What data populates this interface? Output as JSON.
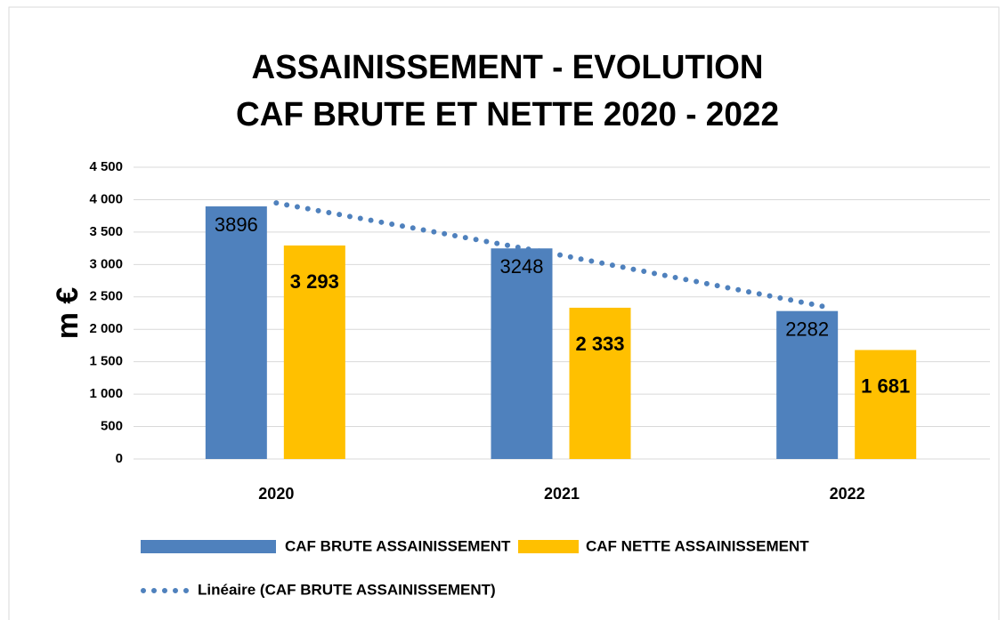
{
  "chart_data": {
    "type": "bar",
    "title": [
      "ASSAINISSEMENT - EVOLUTION",
      "CAF BRUTE ET NETTE 2020 - 2022"
    ],
    "y_label": "m €",
    "categories": [
      "2020",
      "2021",
      "2022"
    ],
    "series": [
      {
        "name": "CAF BRUTE ASSAINISSEMENT",
        "color": "#4f81bd",
        "label_color": "#ffffff",
        "values": [
          3896,
          3248,
          2282
        ]
      },
      {
        "name": "CAF NETTE ASSAINISSEMENT",
        "color": "#ffc000",
        "label_color": "#c00000",
        "values": [
          3293,
          2333,
          1681
        ],
        "value_labels": [
          "3 293",
          "2 333",
          "1 681"
        ]
      }
    ],
    "trendline": {
      "name": "Linéaire (CAF BRUTE ASSAINISSEMENT)",
      "type": "line",
      "style": "dotted",
      "color": "#4f81bd",
      "values": [
        3949,
        3142,
        2335
      ]
    },
    "ylim": [
      0,
      4500
    ],
    "yticks": [
      0,
      500,
      {
        "value": 1000,
        "label": "1 000"
      },
      {
        "value": 1500,
        "label": "1 500"
      },
      {
        "value": 2000,
        "label": "2 000"
      },
      {
        "value": 2500,
        "label": "2 500"
      },
      {
        "value": 3000,
        "label": "3 000"
      },
      {
        "value": 3500,
        "label": "3 500"
      },
      {
        "value": 4000,
        "label": "4 000"
      },
      {
        "value": 4500,
        "label": "4 500"
      }
    ],
    "grid": true
  }
}
